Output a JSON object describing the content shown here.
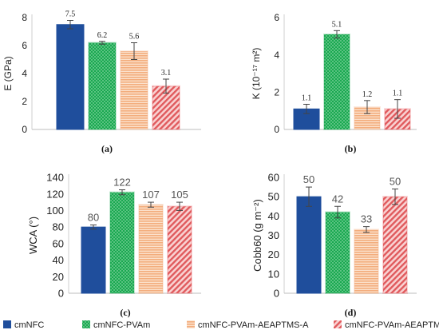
{
  "colors": {
    "cmNFC": "#1f4e9c",
    "cmNFC-PVAm": "#19a850",
    "cmNFC-PVAm-AEAPTMS-A": "#f4b183",
    "cmNFC-PVAm-AEAPTMS-B": "#e8575a"
  },
  "legend": [
    "cmNFC",
    "cmNFC-PVAm",
    "cmNFC-PVAm-AEAPTMS-A",
    "cmNFC-PVAm-AEAPTMS-B"
  ],
  "chart_data": [
    {
      "type": "bar",
      "panel": "(a)",
      "ylabel": "E (GPa)",
      "ylim": [
        0,
        8
      ],
      "yticks": [
        0,
        2,
        4,
        6,
        8
      ],
      "series": [
        {
          "name": "cmNFC",
          "value": 7.5,
          "error": 0.3
        },
        {
          "name": "cmNFC-PVAm",
          "value": 6.2,
          "error": 0.1
        },
        {
          "name": "cmNFC-PVAm-AEAPTMS-A",
          "value": 5.6,
          "error": 0.6
        },
        {
          "name": "cmNFC-PVAm-AEAPTMS-B",
          "value": 3.1,
          "error": 0.5
        }
      ],
      "data_labels": [
        "7.5",
        "6.2",
        "5.6",
        "3.1"
      ]
    },
    {
      "type": "bar",
      "panel": "(b)",
      "ylabel": "K (10⁻¹⁷ m²)",
      "ylim": [
        0,
        6
      ],
      "yticks": [
        0,
        2,
        4,
        6
      ],
      "series": [
        {
          "name": "cmNFC",
          "value": 1.1,
          "error": 0.25
        },
        {
          "name": "cmNFC-PVAm",
          "value": 5.1,
          "error": 0.2
        },
        {
          "name": "cmNFC-PVAm-AEAPTMS-A",
          "value": 1.2,
          "error": 0.35
        },
        {
          "name": "cmNFC-PVAm-AEAPTMS-B",
          "value": 1.1,
          "error": 0.5
        }
      ],
      "data_labels": [
        "1.1",
        "5.1",
        "1.2",
        "1.1"
      ]
    },
    {
      "type": "bar",
      "panel": "(c)",
      "ylabel": "WCA (°)",
      "ylim": [
        0,
        140
      ],
      "yticks": [
        0,
        20,
        40,
        60,
        80,
        100,
        120,
        140
      ],
      "series": [
        {
          "name": "cmNFC",
          "value": 80,
          "error": 2.5
        },
        {
          "name": "cmNFC-PVAm",
          "value": 122,
          "error": 3
        },
        {
          "name": "cmNFC-PVAm-AEAPTMS-A",
          "value": 107,
          "error": 3
        },
        {
          "name": "cmNFC-PVAm-AEAPTMS-B",
          "value": 105,
          "error": 5
        }
      ],
      "data_labels": [
        "80",
        "122",
        "107",
        "105"
      ]
    },
    {
      "type": "bar",
      "panel": "(d)",
      "ylabel": "Cobb60 (g m⁻²)",
      "ylim": [
        0,
        60
      ],
      "yticks": [
        0,
        10,
        20,
        30,
        40,
        50,
        60
      ],
      "series": [
        {
          "name": "cmNFC",
          "value": 50,
          "error": 5
        },
        {
          "name": "cmNFC-PVAm",
          "value": 42,
          "error": 3
        },
        {
          "name": "cmNFC-PVAm-AEAPTMS-A",
          "value": 33,
          "error": 1.5
        },
        {
          "name": "cmNFC-PVAm-AEAPTMS-B",
          "value": 50,
          "error": 4
        }
      ],
      "data_labels": [
        "50",
        "42",
        "33",
        "50"
      ]
    }
  ]
}
